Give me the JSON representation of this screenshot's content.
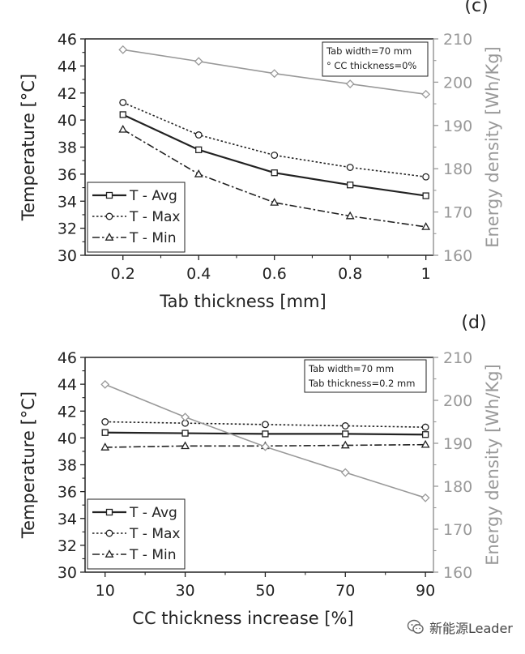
{
  "watermark": {
    "text": "新能源Leader",
    "icon": "wechat-icon"
  },
  "colors": {
    "axis": "#222222",
    "energy": "#999999"
  },
  "chart_data": [
    {
      "type": "line",
      "panel_label": "(c)",
      "xlabel": "Tab thickness [mm]",
      "ylabel": "Temperature [°C]",
      "y2label": "Energy density [Wh/Kg]",
      "x": [
        0.2,
        0.4,
        0.6,
        0.8,
        1.0
      ],
      "xticks": [
        0.2,
        0.4,
        0.6,
        0.8,
        1.0
      ],
      "xtick_labels": [
        "0.2",
        "0.4",
        "0.6",
        "0.8",
        "1"
      ],
      "xlim": [
        0.1,
        1.02
      ],
      "ylim": [
        30,
        46
      ],
      "yticks": [
        30,
        32,
        34,
        36,
        38,
        40,
        42,
        44,
        46
      ],
      "y2lim": [
        160,
        210
      ],
      "y2ticks": [
        160,
        170,
        180,
        190,
        200,
        210
      ],
      "annotation": [
        "Tab width=70 mm",
        "° CC thickness=0%"
      ],
      "legend_position": "bottom-left",
      "series": [
        {
          "name": "T - Avg",
          "style": "solid",
          "marker": "square",
          "axis": "left",
          "values": [
            40.4,
            37.8,
            36.1,
            35.2,
            34.4
          ]
        },
        {
          "name": "T - Max",
          "style": "dotted",
          "marker": "circle",
          "axis": "left",
          "values": [
            41.3,
            38.9,
            37.4,
            36.5,
            35.8
          ]
        },
        {
          "name": "T - Min",
          "style": "dashdot",
          "marker": "triangle",
          "axis": "left",
          "values": [
            39.3,
            36.0,
            33.9,
            32.9,
            32.1
          ]
        },
        {
          "style": "solid",
          "marker": "diamond",
          "axis": "right",
          "color": "#999999",
          "values": [
            207.5,
            204.8,
            202.0,
            199.6,
            197.2
          ]
        }
      ]
    },
    {
      "type": "line",
      "panel_label": "(d)",
      "xlabel": "CC thickness increase [%]",
      "ylabel": "Temperature [°C]",
      "y2label": "Energy density [Wh/Kg]",
      "x": [
        10,
        30,
        50,
        70,
        90
      ],
      "xticks": [
        10,
        30,
        50,
        70,
        90
      ],
      "xtick_labels": [
        "10",
        "30",
        "50",
        "70",
        "90"
      ],
      "xlim": [
        5,
        92
      ],
      "ylim": [
        30,
        46
      ],
      "yticks": [
        30,
        32,
        34,
        36,
        38,
        40,
        42,
        44,
        46
      ],
      "y2lim": [
        160,
        210
      ],
      "y2ticks": [
        160,
        170,
        180,
        190,
        200,
        210
      ],
      "annotation": [
        "Tab width=70 mm",
        "Tab thickness=0.2 mm"
      ],
      "legend_position": "bottom-left",
      "series": [
        {
          "name": "T - Avg",
          "style": "solid",
          "marker": "square",
          "axis": "left",
          "values": [
            40.4,
            40.35,
            40.3,
            40.3,
            40.25
          ]
        },
        {
          "name": "T - Max",
          "style": "dotted",
          "marker": "circle",
          "axis": "left",
          "values": [
            41.2,
            41.1,
            41.0,
            40.9,
            40.8
          ]
        },
        {
          "name": "T - Min",
          "style": "dashdot",
          "marker": "triangle",
          "axis": "left",
          "values": [
            39.3,
            39.4,
            39.4,
            39.45,
            39.5
          ]
        },
        {
          "style": "solid",
          "marker": "diamond",
          "axis": "right",
          "color": "#999999",
          "values": [
            203.7,
            196.1,
            189.2,
            183.2,
            177.3
          ]
        }
      ]
    }
  ]
}
